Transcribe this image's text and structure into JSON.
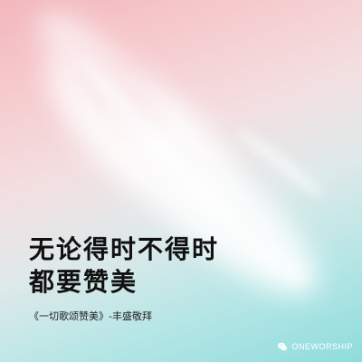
{
  "colors": {
    "top_left": "#f1b7bd",
    "center": "#f3dfe1",
    "bottom_right": "#8fdcdc",
    "title_text": "#111111",
    "brand_text": "#ffffff"
  },
  "title": {
    "line1": "无论得时不得时",
    "line2": "都要赞美"
  },
  "caption": "《一切歌颂赞美》-丰盛敬拜",
  "brand": {
    "icon": "wechat-icon",
    "label": "ONEWORSHIP"
  }
}
